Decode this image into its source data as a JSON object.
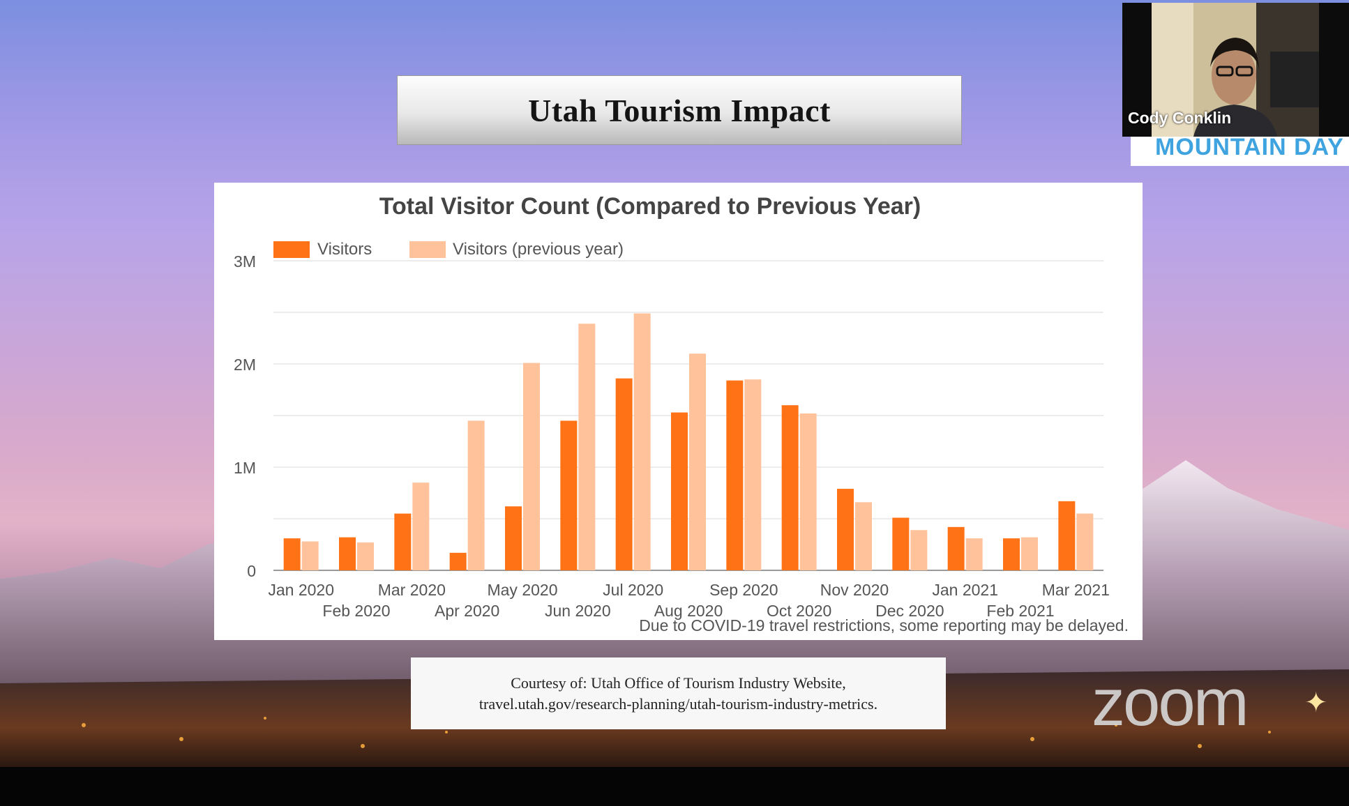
{
  "slide": {
    "title": "Utah Tourism Impact",
    "source_line1": "Courtesy of: Utah Office of Tourism Industry Website,",
    "source_line2": "travel.utah.gov/research-planning/utah-tourism-industry-metrics."
  },
  "video": {
    "participant_name": "Cody Conklin",
    "banner_text": "MOUNTAIN DAY"
  },
  "app": {
    "watermark": "zoom"
  },
  "chart_data": {
    "type": "bar",
    "title": "Total Visitor Count (Compared to Previous Year)",
    "note": "Due to COVID-19 travel restrictions, some reporting may be delayed.",
    "categories": [
      "Jan 2020",
      "Feb 2020",
      "Mar 2020",
      "Apr 2020",
      "May 2020",
      "Jun 2020",
      "Jul 2020",
      "Aug 2020",
      "Sep 2020",
      "Oct 2020",
      "Nov 2020",
      "Dec 2020",
      "Jan 2021",
      "Feb 2021",
      "Mar 2021"
    ],
    "series": [
      {
        "name": "Visitors",
        "color": "#ff7316",
        "values": [
          310000,
          320000,
          550000,
          170000,
          620000,
          1450000,
          1860000,
          1530000,
          1840000,
          1600000,
          790000,
          510000,
          420000,
          310000,
          670000
        ]
      },
      {
        "name": "Visitors (previous year)",
        "color": "#ffc29a",
        "values": [
          280000,
          270000,
          850000,
          1450000,
          2010000,
          2390000,
          2490000,
          2100000,
          1850000,
          1520000,
          660000,
          390000,
          310000,
          320000,
          550000
        ]
      }
    ],
    "ylim": [
      0,
      3000000
    ],
    "yticks": [
      0,
      1000000,
      2000000,
      3000000
    ],
    "ytick_labels": [
      "0",
      "1M",
      "2M",
      "3M"
    ],
    "grid": true,
    "legend": "top-left",
    "xlabel": "",
    "ylabel": ""
  }
}
